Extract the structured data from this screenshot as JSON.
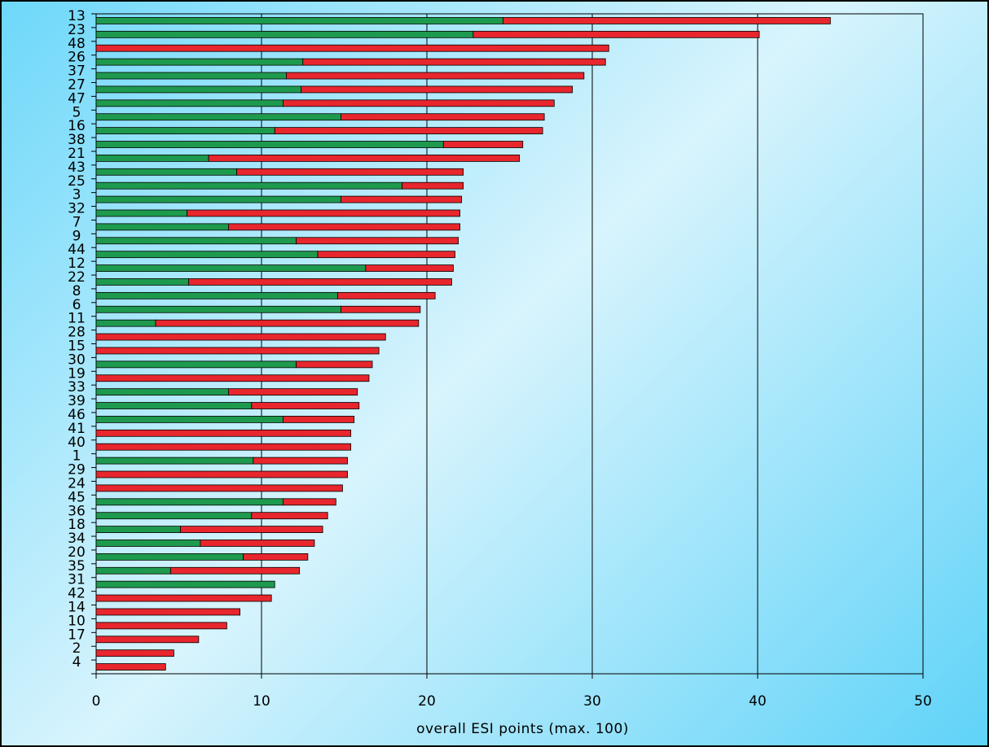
{
  "chart_data": {
    "type": "bar",
    "orientation": "horizontal",
    "stacked": true,
    "xlabel": "overall ESI points (max. 100)",
    "ylabel": "",
    "xlim": [
      0,
      50
    ],
    "xticks": [
      0,
      10,
      20,
      30,
      40,
      50
    ],
    "grid": "vertical",
    "legend": "none",
    "categories": [
      "13",
      "23",
      "48",
      "26",
      "37",
      "27",
      "47",
      "5",
      "16",
      "38",
      "21",
      "43",
      "25",
      "3",
      "32",
      "7",
      "9",
      "44",
      "12",
      "22",
      "8",
      "6",
      "11",
      "28",
      "15",
      "30",
      "19",
      "33",
      "39",
      "46",
      "41",
      "40",
      "1",
      "29",
      "24",
      "45",
      "36",
      "18",
      "34",
      "20",
      "35",
      "31",
      "42",
      "14",
      "10",
      "17",
      "2",
      "4"
    ],
    "series": [
      {
        "color": "#1e9a4e",
        "values": [
          24.6,
          22.8,
          0,
          12.5,
          11.5,
          12.4,
          11.3,
          14.8,
          10.8,
          21.0,
          6.8,
          8.5,
          18.5,
          14.8,
          5.5,
          8.0,
          12.1,
          13.4,
          16.3,
          5.6,
          14.6,
          14.8,
          3.6,
          0,
          0,
          12.1,
          0,
          8.0,
          9.4,
          11.3,
          0,
          0,
          9.5,
          0,
          0,
          11.3,
          9.4,
          5.1,
          6.3,
          8.9,
          4.5,
          10.8,
          0,
          0,
          0,
          0,
          0,
          0
        ]
      },
      {
        "color": "#e8262d",
        "values": [
          19.8,
          17.3,
          31.0,
          18.3,
          18.0,
          16.4,
          16.4,
          12.3,
          16.2,
          4.8,
          18.8,
          13.7,
          3.7,
          7.3,
          16.5,
          14.0,
          9.8,
          8.3,
          5.3,
          15.9,
          5.9,
          4.8,
          15.9,
          17.5,
          17.1,
          4.6,
          16.5,
          7.8,
          6.5,
          4.3,
          15.4,
          15.4,
          5.7,
          15.2,
          14.9,
          3.2,
          4.6,
          8.6,
          6.9,
          3.9,
          7.8,
          0,
          10.6,
          8.7,
          7.9,
          6.2,
          4.7,
          4.2
        ]
      }
    ]
  }
}
